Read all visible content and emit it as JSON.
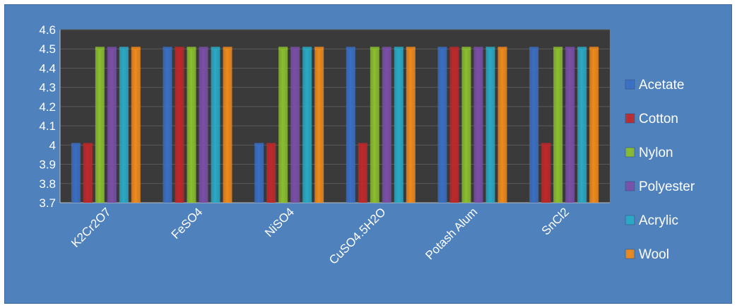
{
  "chart_data": {
    "type": "bar",
    "categories": [
      "K2Cr2O7",
      "FeSO4",
      "NiSO4",
      "CuSO4.5H2O",
      "Potash Alum",
      "SnCl2"
    ],
    "series": [
      {
        "name": "Acetate",
        "color": "#3a6fc4",
        "values": [
          4.0,
          4.5,
          4.0,
          4.5,
          4.5,
          4.5
        ]
      },
      {
        "name": "Cotton",
        "color": "#c0282a",
        "values": [
          4.0,
          4.5,
          4.0,
          4.0,
          4.5,
          4.0
        ]
      },
      {
        "name": "Nylon",
        "color": "#8bbf2e",
        "values": [
          4.5,
          4.5,
          4.5,
          4.5,
          4.5,
          4.5
        ]
      },
      {
        "name": "Polyester",
        "color": "#7a4fa8",
        "values": [
          4.5,
          4.5,
          4.5,
          4.5,
          4.5,
          4.5
        ]
      },
      {
        "name": "Acrylic",
        "color": "#2aaac6",
        "values": [
          4.5,
          4.5,
          4.5,
          4.5,
          4.5,
          4.5
        ]
      },
      {
        "name": "Wool",
        "color": "#f08a1c",
        "values": [
          4.5,
          4.5,
          4.5,
          4.5,
          4.5,
          4.5
        ]
      }
    ],
    "ylim": [
      3.7,
      4.6
    ],
    "yticks": [
      "3.7",
      "3.8",
      "3.9",
      "4",
      "4.1",
      "4.2",
      "4.3",
      "4.4",
      "4.5",
      "4.6"
    ],
    "grid": true,
    "legend_position": "right",
    "title": "",
    "xlabel": "",
    "ylabel": "",
    "colors": {
      "background": "#4f81bd",
      "plot_area": "#3a3a3a",
      "gridline": "#5a5a5a",
      "text": "#ffffff"
    }
  }
}
